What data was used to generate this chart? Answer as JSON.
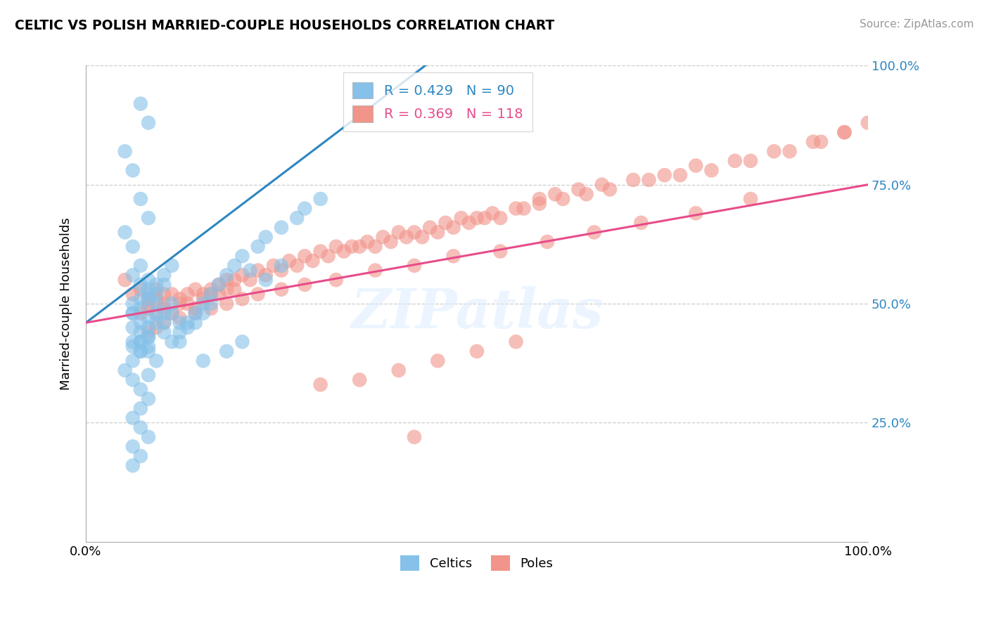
{
  "title": "CELTIC VS POLISH MARRIED-COUPLE HOUSEHOLDS CORRELATION CHART",
  "source": "Source: ZipAtlas.com",
  "ylabel": "Married-couple Households",
  "xlim": [
    0.0,
    1.0
  ],
  "ylim": [
    0.0,
    1.0
  ],
  "celtics_R": 0.429,
  "celtics_N": 90,
  "poles_R": 0.369,
  "poles_N": 118,
  "blue_color": "#85C1E9",
  "pink_color": "#F1948A",
  "blue_line_color": "#2E86C1",
  "pink_line_color": "#E74C8B",
  "watermark": "ZIPatlas",
  "blue_line_x0": 0.0,
  "blue_line_y0": 0.46,
  "blue_line_x1": 0.45,
  "blue_line_y1": 1.02,
  "pink_line_x0": 0.0,
  "pink_line_y0": 0.46,
  "pink_line_x1": 1.0,
  "pink_line_y1": 0.75,
  "celtics_x": [
    0.07,
    0.08,
    0.05,
    0.06,
    0.07,
    0.08,
    0.05,
    0.06,
    0.07,
    0.06,
    0.07,
    0.08,
    0.06,
    0.07,
    0.06,
    0.08,
    0.07,
    0.06,
    0.07,
    0.08,
    0.06,
    0.07,
    0.08,
    0.06,
    0.07,
    0.08,
    0.09,
    0.08,
    0.09,
    0.1,
    0.09,
    0.1,
    0.11,
    0.1,
    0.11,
    0.12,
    0.11,
    0.12,
    0.13,
    0.12,
    0.14,
    0.13,
    0.15,
    0.14,
    0.16,
    0.15,
    0.17,
    0.16,
    0.18,
    0.19,
    0.2,
    0.22,
    0.21,
    0.23,
    0.25,
    0.27,
    0.28,
    0.3,
    0.23,
    0.25,
    0.15,
    0.18,
    0.2,
    0.05,
    0.06,
    0.07,
    0.08,
    0.07,
    0.06,
    0.07,
    0.08,
    0.06,
    0.07,
    0.06,
    0.08,
    0.09,
    0.07,
    0.08,
    0.06,
    0.07,
    0.08,
    0.06,
    0.07,
    0.08,
    0.09,
    0.1,
    0.08,
    0.09,
    0.1,
    0.11
  ],
  "celtics_y": [
    0.92,
    0.88,
    0.82,
    0.78,
    0.72,
    0.68,
    0.65,
    0.62,
    0.58,
    0.56,
    0.54,
    0.52,
    0.5,
    0.49,
    0.48,
    0.47,
    0.46,
    0.45,
    0.44,
    0.43,
    0.42,
    0.42,
    0.41,
    0.41,
    0.4,
    0.4,
    0.5,
    0.55,
    0.52,
    0.54,
    0.48,
    0.46,
    0.5,
    0.44,
    0.48,
    0.46,
    0.42,
    0.44,
    0.46,
    0.42,
    0.48,
    0.45,
    0.5,
    0.46,
    0.52,
    0.48,
    0.54,
    0.5,
    0.56,
    0.58,
    0.6,
    0.62,
    0.57,
    0.64,
    0.66,
    0.68,
    0.7,
    0.72,
    0.55,
    0.58,
    0.38,
    0.4,
    0.42,
    0.36,
    0.34,
    0.32,
    0.3,
    0.28,
    0.26,
    0.24,
    0.22,
    0.2,
    0.18,
    0.16,
    0.35,
    0.38,
    0.42,
    0.45,
    0.48,
    0.51,
    0.53,
    0.38,
    0.4,
    0.43,
    0.46,
    0.48,
    0.51,
    0.54,
    0.56,
    0.58
  ],
  "poles_x": [
    0.05,
    0.06,
    0.07,
    0.08,
    0.07,
    0.08,
    0.09,
    0.08,
    0.09,
    0.1,
    0.09,
    0.1,
    0.11,
    0.1,
    0.12,
    0.11,
    0.13,
    0.12,
    0.14,
    0.13,
    0.15,
    0.14,
    0.16,
    0.15,
    0.17,
    0.16,
    0.18,
    0.17,
    0.19,
    0.18,
    0.2,
    0.19,
    0.22,
    0.21,
    0.24,
    0.23,
    0.26,
    0.25,
    0.28,
    0.27,
    0.3,
    0.29,
    0.32,
    0.31,
    0.34,
    0.33,
    0.36,
    0.35,
    0.38,
    0.37,
    0.4,
    0.39,
    0.42,
    0.41,
    0.44,
    0.43,
    0.46,
    0.45,
    0.48,
    0.47,
    0.5,
    0.49,
    0.52,
    0.51,
    0.55,
    0.53,
    0.58,
    0.56,
    0.6,
    0.58,
    0.63,
    0.61,
    0.66,
    0.64,
    0.7,
    0.67,
    0.74,
    0.72,
    0.78,
    0.76,
    0.83,
    0.8,
    0.88,
    0.85,
    0.93,
    0.9,
    0.97,
    0.94,
    1.0,
    0.97,
    0.08,
    0.09,
    0.1,
    0.12,
    0.14,
    0.16,
    0.18,
    0.2,
    0.22,
    0.25,
    0.28,
    0.32,
    0.37,
    0.42,
    0.47,
    0.53,
    0.59,
    0.65,
    0.71,
    0.78,
    0.85,
    0.5,
    0.55,
    0.45,
    0.4,
    0.35,
    0.3,
    0.42
  ],
  "poles_y": [
    0.55,
    0.52,
    0.53,
    0.5,
    0.48,
    0.51,
    0.53,
    0.49,
    0.51,
    0.52,
    0.48,
    0.5,
    0.52,
    0.49,
    0.51,
    0.48,
    0.52,
    0.5,
    0.53,
    0.5,
    0.52,
    0.49,
    0.53,
    0.51,
    0.54,
    0.52,
    0.55,
    0.52,
    0.55,
    0.53,
    0.56,
    0.53,
    0.57,
    0.55,
    0.58,
    0.56,
    0.59,
    0.57,
    0.6,
    0.58,
    0.61,
    0.59,
    0.62,
    0.6,
    0.62,
    0.61,
    0.63,
    0.62,
    0.64,
    0.62,
    0.65,
    0.63,
    0.65,
    0.64,
    0.66,
    0.64,
    0.67,
    0.65,
    0.68,
    0.66,
    0.68,
    0.67,
    0.69,
    0.68,
    0.7,
    0.68,
    0.72,
    0.7,
    0.73,
    0.71,
    0.74,
    0.72,
    0.75,
    0.73,
    0.76,
    0.74,
    0.77,
    0.76,
    0.79,
    0.77,
    0.8,
    0.78,
    0.82,
    0.8,
    0.84,
    0.82,
    0.86,
    0.84,
    0.88,
    0.86,
    0.44,
    0.45,
    0.46,
    0.47,
    0.48,
    0.49,
    0.5,
    0.51,
    0.52,
    0.53,
    0.54,
    0.55,
    0.57,
    0.58,
    0.6,
    0.61,
    0.63,
    0.65,
    0.67,
    0.69,
    0.72,
    0.4,
    0.42,
    0.38,
    0.36,
    0.34,
    0.33,
    0.22
  ]
}
